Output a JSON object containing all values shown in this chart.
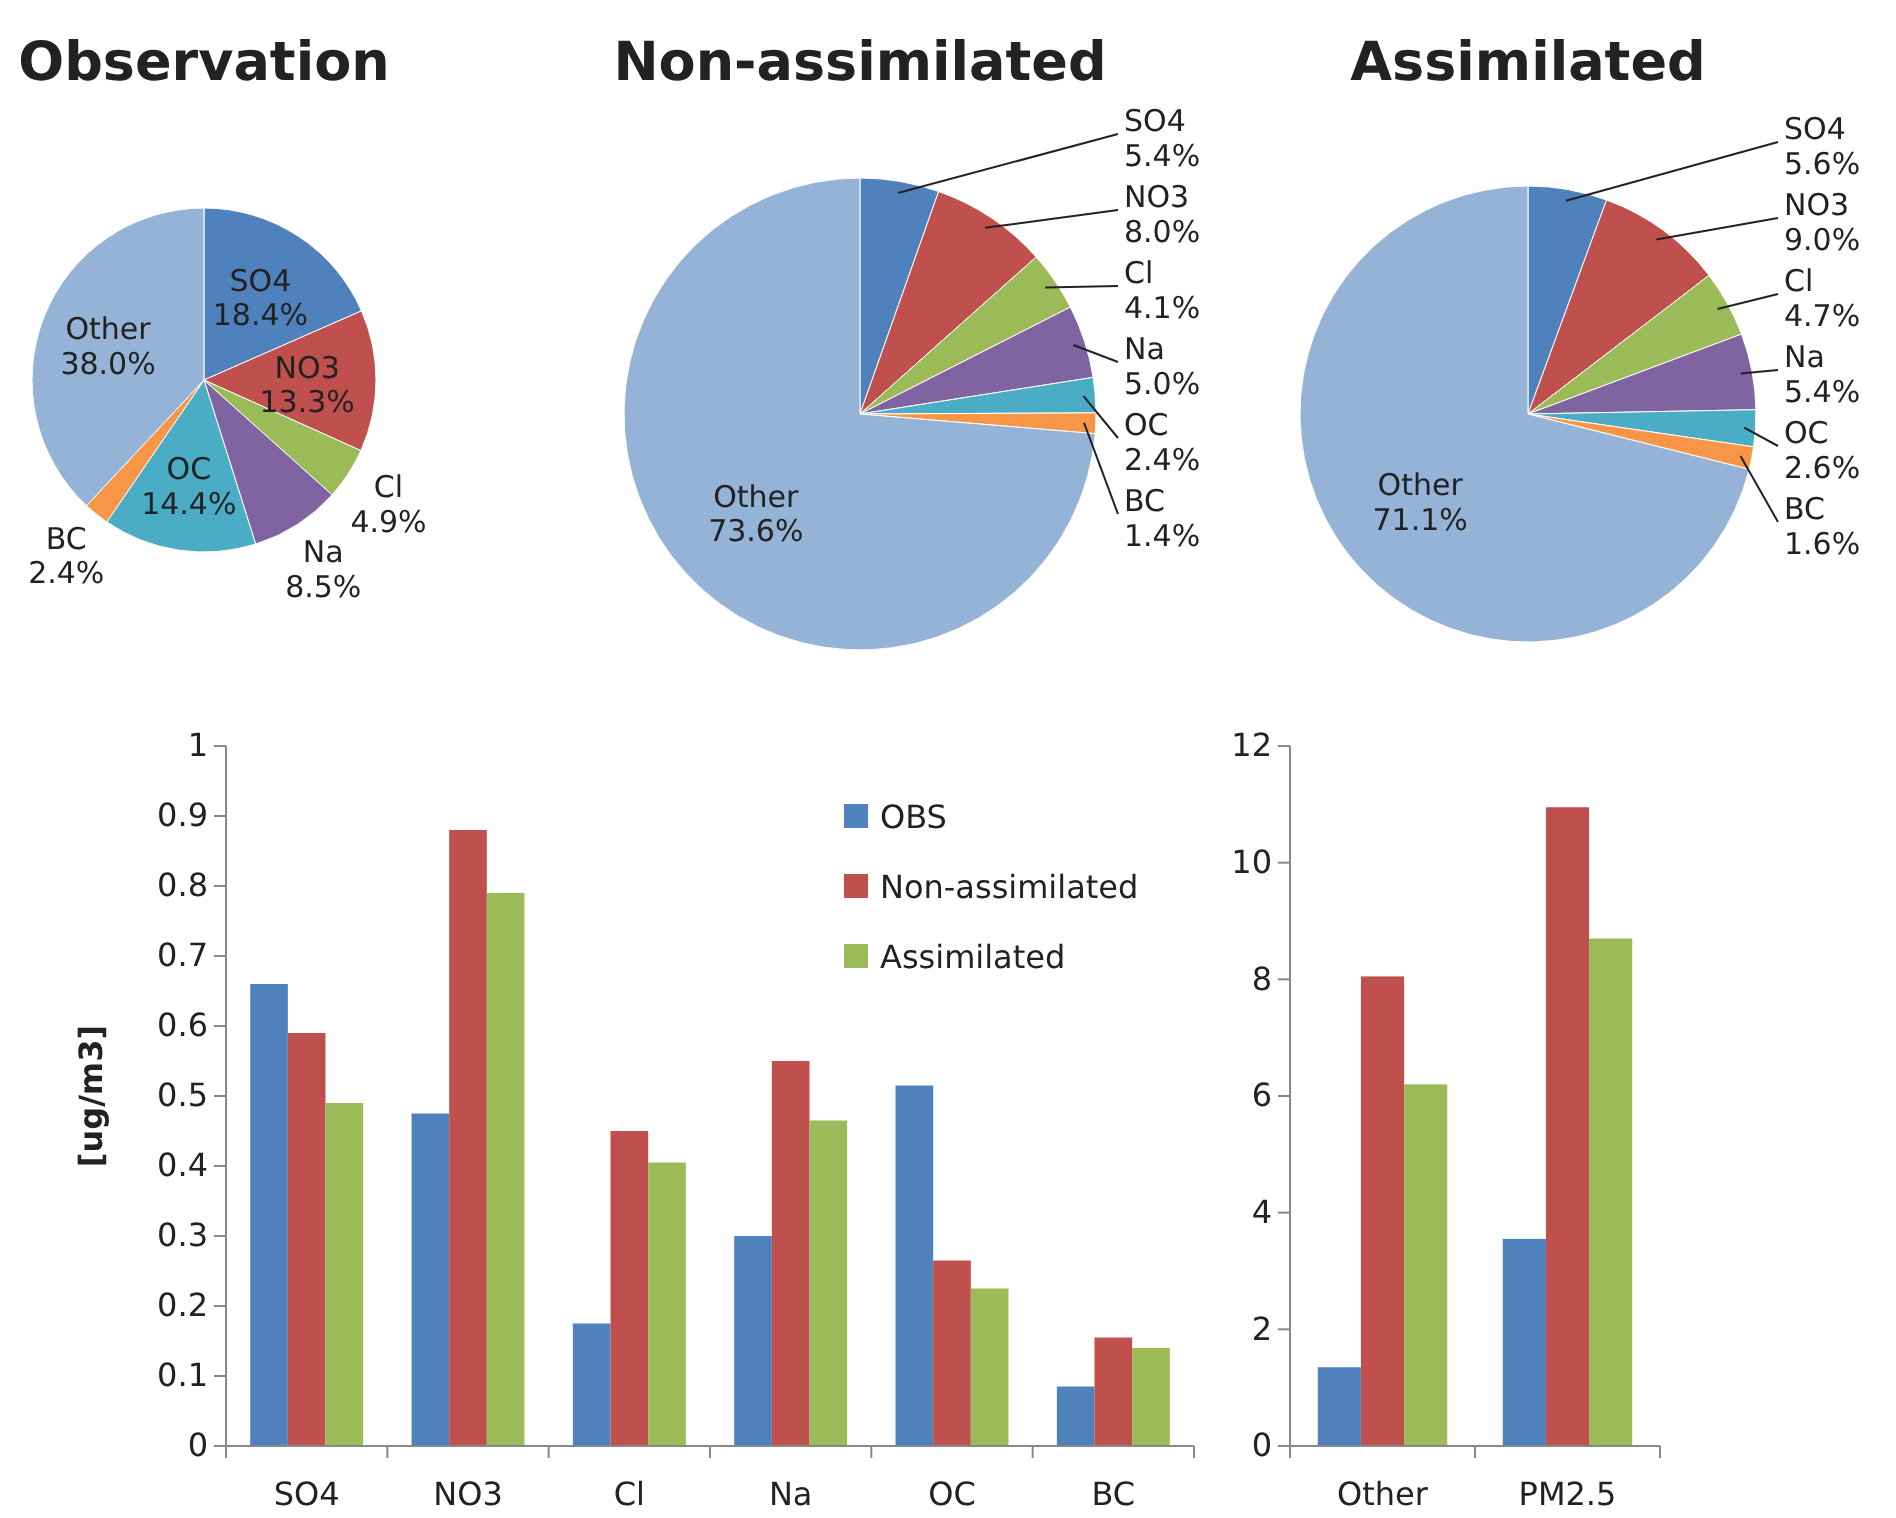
{
  "chart_data": [
    {
      "type": "pie",
      "title": "Observation",
      "categories": [
        "SO4",
        "NO3",
        "Cl",
        "Na",
        "OC",
        "BC",
        "Other"
      ],
      "values": [
        18.4,
        13.3,
        4.9,
        8.5,
        14.4,
        2.4,
        38.0
      ],
      "value_labels": [
        "18.4%",
        "13.3%",
        "4.9%",
        "8.5%",
        "14.4%",
        "2.4%",
        "38.0%"
      ],
      "colors": [
        "#4f81bd",
        "#c0504d",
        "#9bbb59",
        "#8064a2",
        "#4bacc6",
        "#f79646",
        "#95b3d7"
      ],
      "legend": false
    },
    {
      "type": "pie",
      "title": "Non-assimilated",
      "categories": [
        "SO4",
        "NO3",
        "Cl",
        "Na",
        "OC",
        "BC",
        "Other"
      ],
      "values": [
        5.4,
        8.0,
        4.1,
        5.0,
        2.4,
        1.4,
        73.6
      ],
      "value_labels": [
        "5.4%",
        "8.0%",
        "4.1%",
        "5.0%",
        "2.4%",
        "1.4%",
        "73.6%"
      ],
      "colors": [
        "#4f81bd",
        "#c0504d",
        "#9bbb59",
        "#8064a2",
        "#4bacc6",
        "#f79646",
        "#95b3d7"
      ],
      "legend": false
    },
    {
      "type": "pie",
      "title": "Assimilated",
      "categories": [
        "SO4",
        "NO3",
        "Cl",
        "Na",
        "OC",
        "BC",
        "Other"
      ],
      "values": [
        5.6,
        9.0,
        4.7,
        5.4,
        2.6,
        1.6,
        71.1
      ],
      "value_labels": [
        "5.6%",
        "9.0%",
        "4.7%",
        "5.4%",
        "2.6%",
        "1.6%",
        "71.1%"
      ],
      "colors": [
        "#4f81bd",
        "#c0504d",
        "#9bbb59",
        "#8064a2",
        "#4bacc6",
        "#f79646",
        "#95b3d7"
      ],
      "legend": false
    },
    {
      "type": "bar",
      "ylabel": "[ug/m3]",
      "categories": [
        "SO4",
        "NO3",
        "Cl",
        "Na",
        "OC",
        "BC"
      ],
      "ylim": [
        0,
        1
      ],
      "yticks": [
        0,
        0.1,
        0.2,
        0.3,
        0.4,
        0.5,
        0.6,
        0.7,
        0.8,
        0.9,
        1
      ],
      "legend": "top right",
      "grid": false,
      "series": [
        {
          "name": "OBS",
          "color": "#4f81bd",
          "values": [
            0.66,
            0.475,
            0.175,
            0.3,
            0.515,
            0.085
          ]
        },
        {
          "name": "Non-assimilated",
          "color": "#c0504d",
          "values": [
            0.59,
            0.88,
            0.45,
            0.55,
            0.265,
            0.155
          ]
        },
        {
          "name": "Assimilated",
          "color": "#9bbb59",
          "values": [
            0.49,
            0.79,
            0.405,
            0.465,
            0.225,
            0.14
          ]
        }
      ]
    },
    {
      "type": "bar",
      "categories": [
        "Other",
        "PM2.5"
      ],
      "ylim": [
        0,
        12
      ],
      "yticks": [
        0,
        2,
        4,
        6,
        8,
        10,
        12
      ],
      "legend": false,
      "grid": false,
      "series": [
        {
          "color": "#4f81bd",
          "values": [
            1.35,
            3.55
          ]
        },
        {
          "color": "#c0504d",
          "values": [
            8.05,
            10.95
          ]
        },
        {
          "color": "#9bbb59",
          "values": [
            6.2,
            8.7
          ]
        }
      ]
    }
  ]
}
